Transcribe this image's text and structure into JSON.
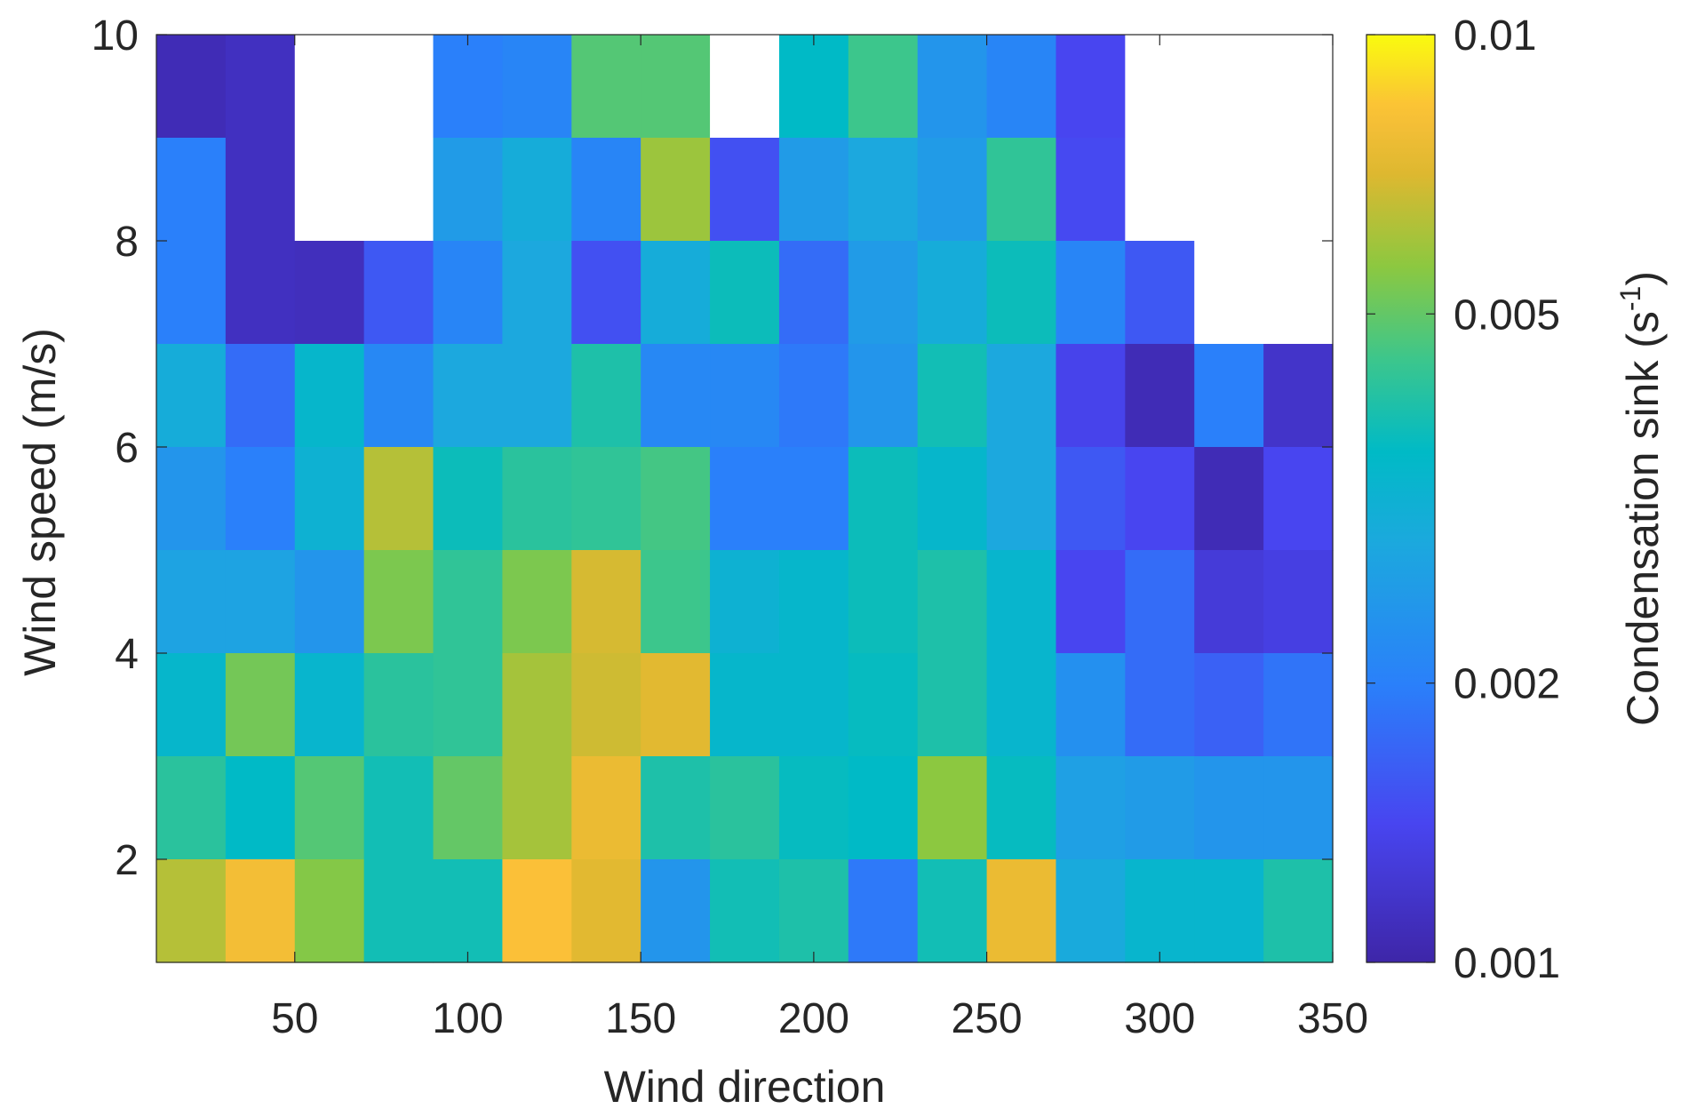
{
  "chart_data": {
    "type": "heatmap",
    "xlabel": "Wind direction",
    "ylabel": "Wind speed (m/s)",
    "colorbar_label": "Condensation sink (s",
    "colorbar_label_sup": "-1",
    "colorbar_label_end": ")",
    "colormap": "parula",
    "color_scale": "log",
    "clim": [
      0.001,
      0.01
    ],
    "colorbar_ticks": [
      0.001,
      0.002,
      0.005,
      0.01
    ],
    "colorbar_tick_labels": [
      "0.001",
      "0.002",
      "0.005",
      "0.01"
    ],
    "xlim": [
      10,
      350
    ],
    "ylim": [
      1,
      10
    ],
    "x_ticks": [
      50,
      100,
      150,
      200,
      250,
      300,
      350
    ],
    "y_ticks": [
      2,
      4,
      6,
      8,
      10
    ],
    "x_bin_edges": [
      10,
      30,
      50,
      70,
      90,
      110,
      130,
      150,
      170,
      190,
      210,
      230,
      250,
      270,
      290,
      310,
      330,
      350
    ],
    "y_bin_edges_top_to_bottom": [
      10,
      9,
      8,
      7,
      6,
      5,
      4,
      3,
      2,
      1
    ],
    "missing_color": "#ffffff",
    "values_rows_top_to_bottom": [
      [
        0.00107,
        0.00112,
        null,
        null,
        0.002,
        0.00209,
        0.00479,
        0.00479,
        null,
        0.00355,
        0.00447,
        0.0024,
        0.00209,
        0.00141,
        null,
        null,
        null
      ],
      [
        0.002,
        0.00112,
        null,
        null,
        0.00251,
        0.00295,
        0.00209,
        0.00589,
        0.00151,
        0.00251,
        0.00282,
        0.00251,
        0.00427,
        0.00145,
        null,
        null,
        null
      ],
      [
        0.002,
        0.00112,
        0.0011,
        0.00158,
        0.00209,
        0.00282,
        0.00151,
        0.00295,
        0.00372,
        0.00178,
        0.00251,
        0.00295,
        0.00372,
        0.00209,
        0.00158,
        null,
        null
      ],
      [
        0.00295,
        0.00178,
        0.00339,
        0.00214,
        0.00282,
        0.00282,
        0.00398,
        0.00214,
        0.00214,
        0.00191,
        0.0024,
        0.0038,
        0.00282,
        0.00138,
        0.00107,
        0.002,
        0.00117
      ],
      [
        0.0024,
        0.002,
        0.00316,
        0.00631,
        0.00372,
        0.00417,
        0.00427,
        0.00457,
        0.002,
        0.002,
        0.00372,
        0.00339,
        0.00282,
        0.00158,
        0.00141,
        0.00107,
        0.00141
      ],
      [
        0.00269,
        0.00269,
        0.0024,
        0.00537,
        0.00427,
        0.00537,
        0.00692,
        0.00447,
        0.00316,
        0.00339,
        0.00372,
        0.00398,
        0.00331,
        0.00141,
        0.00178,
        0.00126,
        0.00132
      ],
      [
        0.00339,
        0.00525,
        0.00331,
        0.00417,
        0.00427,
        0.00603,
        0.00676,
        0.00724,
        0.00339,
        0.00339,
        0.00363,
        0.00398,
        0.00331,
        0.00229,
        0.00178,
        0.00166,
        0.00186
      ],
      [
        0.00417,
        0.00355,
        0.00479,
        0.0038,
        0.00501,
        0.00603,
        0.00759,
        0.00398,
        0.00417,
        0.00363,
        0.00355,
        0.00562,
        0.00363,
        0.00263,
        0.00251,
        0.0024,
        0.0024
      ],
      [
        0.00631,
        0.00794,
        0.0055,
        0.0038,
        0.0038,
        0.00832,
        0.00724,
        0.0024,
        0.0038,
        0.00398,
        0.00191,
        0.0038,
        0.00759,
        0.00288,
        0.00331,
        0.00331,
        0.00398
      ]
    ]
  }
}
